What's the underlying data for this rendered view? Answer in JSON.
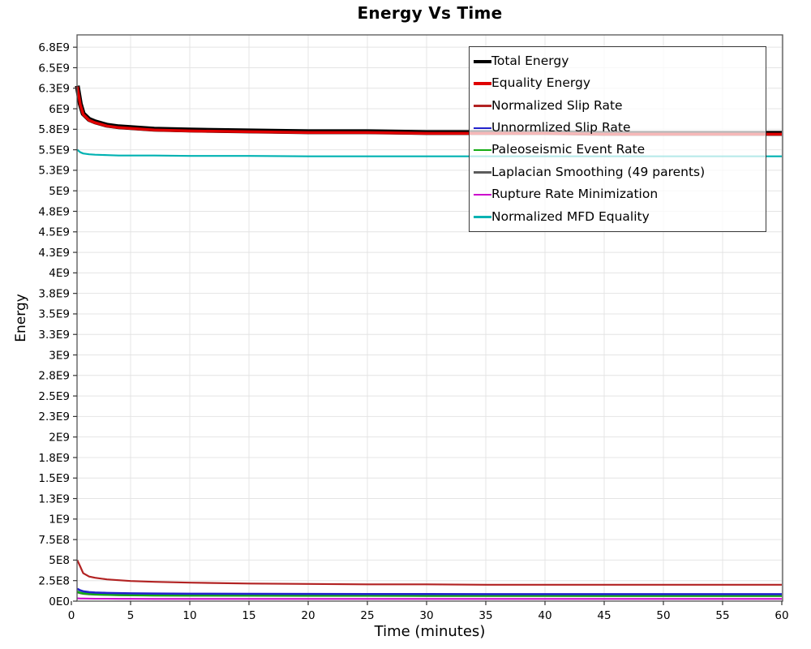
{
  "chart_data": {
    "type": "line",
    "title": "Energy Vs Time",
    "xlabel": "Time (minutes)",
    "ylabel": "Energy",
    "xlim": [
      0,
      60
    ],
    "ylim": [
      0,
      6900000000.0
    ],
    "grid": true,
    "legend_position": "inside-top-right",
    "x_ticks": [
      0,
      5,
      10,
      15,
      20,
      25,
      30,
      35,
      40,
      45,
      50,
      55,
      60
    ],
    "y_ticks": [
      {
        "value": 0,
        "label": "0E0"
      },
      {
        "value": 250000000.0,
        "label": "2.5E8"
      },
      {
        "value": 500000000.0,
        "label": "5E8"
      },
      {
        "value": 750000000.0,
        "label": "7.5E8"
      },
      {
        "value": 1000000000.0,
        "label": "1E9"
      },
      {
        "value": 1250000000.0,
        "label": "1.3E9"
      },
      {
        "value": 1500000000.0,
        "label": "1.5E9"
      },
      {
        "value": 1750000000.0,
        "label": "1.8E9"
      },
      {
        "value": 2000000000.0,
        "label": "2E9"
      },
      {
        "value": 2250000000.0,
        "label": "2.3E9"
      },
      {
        "value": 2500000000.0,
        "label": "2.5E9"
      },
      {
        "value": 2750000000.0,
        "label": "2.8E9"
      },
      {
        "value": 3000000000.0,
        "label": "3E9"
      },
      {
        "value": 3250000000.0,
        "label": "3.3E9"
      },
      {
        "value": 3500000000.0,
        "label": "3.5E9"
      },
      {
        "value": 3750000000.0,
        "label": "3.8E9"
      },
      {
        "value": 4000000000.0,
        "label": "4E9"
      },
      {
        "value": 4250000000.0,
        "label": "4.3E9"
      },
      {
        "value": 4500000000.0,
        "label": "4.5E9"
      },
      {
        "value": 4750000000.0,
        "label": "4.8E9"
      },
      {
        "value": 5000000000.0,
        "label": "5E9"
      },
      {
        "value": 5250000000.0,
        "label": "5.3E9"
      },
      {
        "value": 5500000000.0,
        "label": "5.5E9"
      },
      {
        "value": 5750000000.0,
        "label": "5.8E9"
      },
      {
        "value": 6000000000.0,
        "label": "6E9"
      },
      {
        "value": 6250000000.0,
        "label": "6.3E9"
      },
      {
        "value": 6500000000.0,
        "label": "6.5E9"
      },
      {
        "value": 6750000000.0,
        "label": "6.8E9"
      }
    ],
    "x": [
      0.5,
      0.75,
      1,
      1.5,
      2,
      3,
      4,
      5,
      7,
      10,
      15,
      20,
      25,
      30,
      35,
      40,
      45,
      50,
      55,
      60
    ],
    "series": [
      {
        "name": "Total Energy",
        "color": "#000000",
        "width": 6,
        "values": [
          6280000000.0,
          6060000000.0,
          5940000000.0,
          5870000000.0,
          5840000000.0,
          5800000000.0,
          5780000000.0,
          5770000000.0,
          5750000000.0,
          5740000000.0,
          5730000000.0,
          5720000000.0,
          5720000000.0,
          5710000000.0,
          5710000000.0,
          5710000000.0,
          5700000000.0,
          5700000000.0,
          5700000000.0,
          5700000000.0
        ]
      },
      {
        "name": "Equality Energy",
        "color": "#df0000",
        "width": 3.5,
        "values": [
          6270000000.0,
          6050000000.0,
          5930000000.0,
          5860000000.0,
          5830000000.0,
          5790000000.0,
          5770000000.0,
          5760000000.0,
          5740000000.0,
          5730000000.0,
          5720000000.0,
          5710000000.0,
          5710000000.0,
          5700000000.0,
          5700000000.0,
          5700000000.0,
          5690000000.0,
          5690000000.0,
          5690000000.0,
          5690000000.0
        ]
      },
      {
        "name": "Normalized Slip Rate",
        "color": "#b22222",
        "width": 2.2,
        "values": [
          500000000.0,
          420000000.0,
          340000000.0,
          300000000.0,
          285000000.0,
          265000000.0,
          255000000.0,
          245000000.0,
          235000000.0,
          225000000.0,
          215000000.0,
          210000000.0,
          205000000.0,
          205000000.0,
          200000000.0,
          200000000.0,
          200000000.0,
          200000000.0,
          200000000.0,
          200000000.0
        ]
      },
      {
        "name": "Unnormlized Slip Rate",
        "color": "#2222cc",
        "width": 2.6,
        "values": [
          150000000.0,
          130000000.0,
          120000000.0,
          110000000.0,
          105000000.0,
          100000000.0,
          97000000.0,
          95000000.0,
          92000000.0,
          90000000.0,
          88000000.0,
          87000000.0,
          86000000.0,
          86000000.0,
          85000000.0,
          85000000.0,
          85000000.0,
          85000000.0,
          85000000.0,
          85000000.0
        ]
      },
      {
        "name": "Paleoseismic Event Rate",
        "color": "#14ad14",
        "width": 2.6,
        "values": [
          115000000.0,
          102000000.0,
          95000000.0,
          88000000.0,
          83000000.0,
          78000000.0,
          75000000.0,
          73000000.0,
          71000000.0,
          70000000.0,
          68000000.0,
          67000000.0,
          67000000.0,
          66000000.0,
          66000000.0,
          66000000.0,
          65000000.0,
          65000000.0,
          65000000.0,
          65000000.0
        ]
      },
      {
        "name": "Laplacian Smoothing (49 parents)",
        "color": "#5c5c5c",
        "width": 2,
        "values": [
          105000000.0,
          95000000.0,
          88000000.0,
          82000000.0,
          78000000.0,
          74000000.0,
          71000000.0,
          69000000.0,
          67000000.0,
          65000000.0,
          64000000.0,
          63000000.0,
          63000000.0,
          62000000.0,
          62000000.0,
          62000000.0,
          62000000.0,
          62000000.0,
          62000000.0,
          62000000.0
        ]
      },
      {
        "name": "Rupture Rate Minimization",
        "color": "#cc00cc",
        "width": 2,
        "values": [
          35000000.0,
          33000000.0,
          32000000.0,
          31000000.0,
          30000000.0,
          30000000.0,
          29000000.0,
          29000000.0,
          28000000.0,
          28000000.0,
          28000000.0,
          27000000.0,
          27000000.0,
          27000000.0,
          27000000.0,
          27000000.0,
          27000000.0,
          27000000.0,
          27000000.0,
          27000000.0
        ]
      },
      {
        "name": "Normalized MFD Equality",
        "color": "#00b2b2",
        "width": 2.2,
        "values": [
          5500000000.0,
          5470000000.0,
          5455000000.0,
          5445000000.0,
          5440000000.0,
          5435000000.0,
          5430000000.0,
          5430000000.0,
          5430000000.0,
          5425000000.0,
          5425000000.0,
          5420000000.0,
          5420000000.0,
          5420000000.0,
          5420000000.0,
          5420000000.0,
          5420000000.0,
          5420000000.0,
          5420000000.0,
          5420000000.0
        ]
      }
    ],
    "draw_order": [
      5,
      6,
      4,
      3,
      2,
      7,
      0,
      1
    ],
    "grid_color": "#e4e4e4",
    "border_color": "#555555",
    "tick_color": "#333333"
  }
}
